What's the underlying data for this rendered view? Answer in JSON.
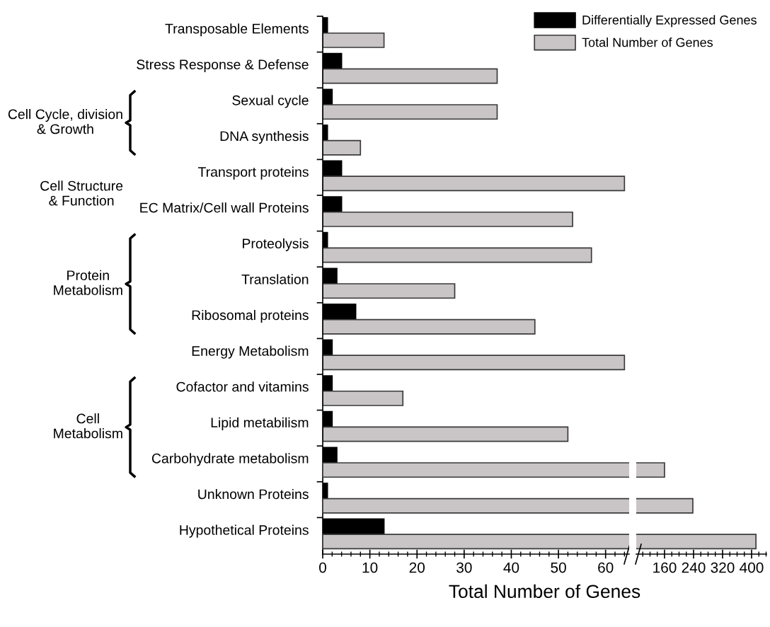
{
  "chart_data": [
    {
      "type": "bar",
      "orientation": "horizontal",
      "xlabel": "Total Number of Genes",
      "categories": [
        "Transposable Elements",
        "Stress Response & Defense",
        "Sexual cycle",
        "DNA synthesis",
        "Transport proteins",
        "EC Matrix/Cell wall Proteins",
        "Proteolysis",
        "Translation",
        "Ribosomal proteins",
        "Energy Metabolism",
        "Cofactor and vitamins",
        "Lipid metabilism",
        "Carbohydrate metabolism",
        "Unknown Proteins",
        "Hypothetical Proteins"
      ],
      "series": [
        {
          "name": "Differentially Expressed Genes",
          "color": "#000000",
          "values": [
            1,
            4,
            2,
            1,
            4,
            4,
            1,
            3,
            7,
            2,
            2,
            2,
            3,
            1,
            13
          ]
        },
        {
          "name": "Total Number of Genes",
          "color": "#c9c5c7",
          "values": [
            13,
            37,
            37,
            8,
            64,
            53,
            57,
            28,
            45,
            64,
            17,
            52,
            null,
            null,
            null
          ]
        }
      ],
      "xlim": [
        0,
        65
      ],
      "xticks": [
        0,
        10,
        20,
        30,
        40,
        50,
        60
      ],
      "annotations": [
        "Cell Cycle, division\n& Growth",
        "Cell Structure\n& Function",
        "Protein\nMetabolism",
        "Cell\nMetabolism"
      ],
      "legend": "top right",
      "grid": false
    },
    {
      "type": "bar",
      "orientation": "horizontal",
      "tick_labels": "x",
      "categories": [
        null,
        null,
        null,
        null,
        null,
        null,
        null,
        null,
        null,
        null,
        null,
        null,
        null,
        null,
        null
      ],
      "series": [
        {
          "color": "#c9c5c7",
          "values": [
            null,
            null,
            null,
            null,
            null,
            null,
            null,
            null,
            null,
            null,
            null,
            null,
            160,
            238,
            412
          ]
        }
      ],
      "xlim": [
        82,
        441
      ],
      "xticks": [
        160,
        240,
        320,
        400
      ],
      "grid": false
    }
  ]
}
